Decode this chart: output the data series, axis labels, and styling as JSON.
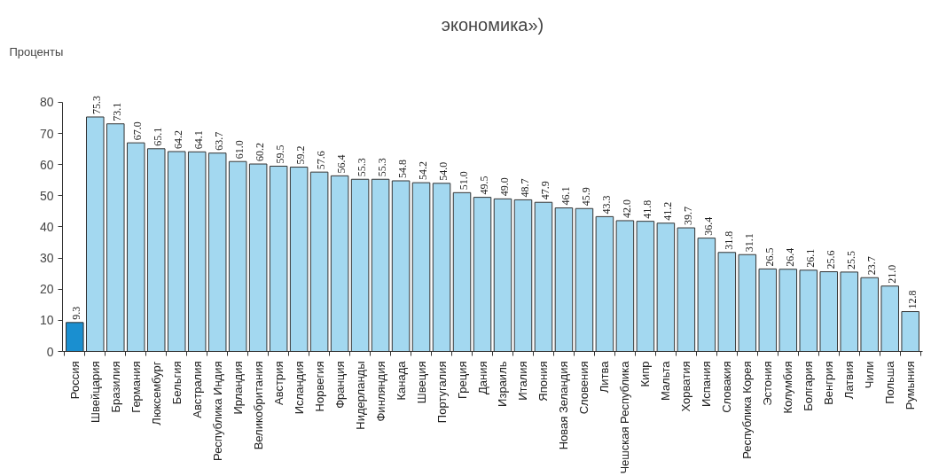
{
  "chart_data": {
    "type": "bar",
    "title": "экономика»)",
    "ylabel": "Проценты",
    "categories": [
      "Россия",
      "Швейцария",
      "Бразилия",
      "Германия",
      "Люксембург",
      "Бельгия",
      "Австралия",
      "Республика Индия",
      "Ирландия",
      "Великобритания",
      "Австрия",
      "Исландия",
      "Норвегия",
      "Франция",
      "Нидерланды",
      "Финляндия",
      "Канада",
      "Швеция",
      "Португалия",
      "Греция",
      "Дания",
      "Израиль",
      "Италия",
      "Япония",
      "Новая Зеландия",
      "Словения",
      "Литва",
      "Чешская Республика",
      "Кипр",
      "Мальта",
      "Хорватия",
      "Испания",
      "Словакия",
      "Республика Корея",
      "Эстония",
      "Колумбия",
      "Болгария",
      "Венгрия",
      "Латвия",
      "Чили",
      "Польша",
      "Румыния"
    ],
    "values": [
      9.3,
      75.3,
      73.1,
      67.0,
      65.1,
      64.2,
      64.1,
      63.7,
      61.0,
      60.2,
      59.5,
      59.2,
      57.6,
      56.4,
      55.3,
      55.3,
      54.8,
      54.2,
      54.0,
      51.0,
      49.5,
      49.0,
      48.7,
      47.9,
      46.1,
      45.9,
      43.3,
      42.0,
      41.8,
      41.2,
      39.7,
      36.4,
      31.8,
      31.1,
      26.5,
      26.4,
      26.1,
      25.6,
      25.5,
      23.7,
      21.0,
      12.8
    ],
    "value_labels": [
      "9.3",
      "75.3",
      "73.1",
      "67.0",
      "65.1",
      "64.2",
      "64.1",
      "63.7",
      "61.0",
      "60.2",
      "59.5",
      "59.2",
      "57.6",
      "56.4",
      "55.3",
      "55.3",
      "54.8",
      "54.2",
      "54.0",
      "51.0",
      "49.5",
      "49.0",
      "48.7",
      "47.9",
      "46.1",
      "45.9",
      "43.3",
      "42.0",
      "41.8",
      "41.2",
      "39.7",
      "36.4",
      "31.8",
      "31.1",
      "26.5",
      "26.4",
      "26.1",
      "25.6",
      "25.5",
      "23.7",
      "21.0",
      "12.8"
    ],
    "colors": [
      "#1a8fd0",
      "#a3d8f0",
      "#a3d8f0",
      "#a3d8f0",
      "#a3d8f0",
      "#a3d8f0",
      "#a3d8f0",
      "#a3d8f0",
      "#a3d8f0",
      "#a3d8f0",
      "#a3d8f0",
      "#a3d8f0",
      "#a3d8f0",
      "#a3d8f0",
      "#a3d8f0",
      "#a3d8f0",
      "#a3d8f0",
      "#a3d8f0",
      "#a3d8f0",
      "#a3d8f0",
      "#a3d8f0",
      "#a3d8f0",
      "#a3d8f0",
      "#a3d8f0",
      "#a3d8f0",
      "#a3d8f0",
      "#a3d8f0",
      "#a3d8f0",
      "#a3d8f0",
      "#a3d8f0",
      "#a3d8f0",
      "#a3d8f0",
      "#a3d8f0",
      "#a3d8f0",
      "#a3d8f0",
      "#a3d8f0",
      "#a3d8f0",
      "#a3d8f0",
      "#a3d8f0",
      "#a3d8f0",
      "#a3d8f0",
      "#a3d8f0"
    ],
    "ylim": [
      0,
      80
    ],
    "yticks": [
      0,
      10,
      20,
      30,
      40,
      50,
      60,
      70,
      80
    ],
    "grid": false
  }
}
